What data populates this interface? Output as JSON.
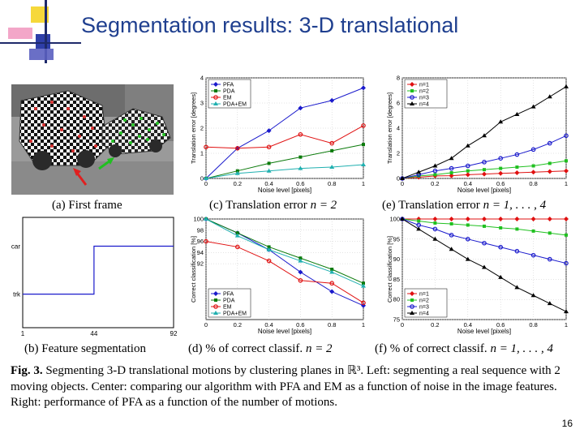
{
  "slide": {
    "title": "Segmentation results: 3-D translational",
    "page_number": "16"
  },
  "subcaptions": {
    "a": "(a) First frame",
    "b": "(b) Feature segmentation",
    "c_prefix": "(c) Translation error ",
    "c_math": "n = 2",
    "d_prefix": "(d) % of correct classif. ",
    "d_math": "n = 2",
    "e_prefix": "(e) Translation error ",
    "e_math": "n = 1, . . . , 4",
    "f_prefix": "(f) % of correct classif. ",
    "f_math": "n = 1, . . . , 4"
  },
  "figure_caption": {
    "label": "Fig. 3.",
    "text": " Segmenting 3-D translational motions by clustering planes in ℝ³. Left: segmenting a real sequence with 2 moving objects. Center: comparing our algorithm with PFA and EM as a function of noise in the image features. Right: performance of PFA as a function of the number of motions."
  },
  "colors": {
    "title": "#1f3f8f",
    "PFA": "#1a1acc",
    "PDA": "#0a7a0a",
    "EM": "#e01010",
    "PDA+EM": "#20b0b0",
    "n=1": "#e01010",
    "n=2": "#20c020",
    "n=3": "#1a1acc",
    "n=4": "#000000"
  },
  "chart_data": [
    {
      "id": "b",
      "type": "line",
      "x": [
        1,
        44,
        44,
        92
      ],
      "series": [
        {
          "values": [
            1,
            1,
            2,
            2
          ]
        }
      ],
      "ytick_labels": [
        "trk",
        "car"
      ],
      "xtick_labels": [
        "1",
        "44",
        "92"
      ],
      "xlim": [
        1,
        92
      ],
      "ylim": [
        0.3,
        2.6
      ]
    },
    {
      "id": "c",
      "type": "line",
      "x": [
        0,
        0.2,
        0.4,
        0.6,
        0.8,
        1
      ],
      "series": [
        {
          "name": "PFA",
          "values": [
            0,
            1.2,
            1.9,
            2.8,
            3.1,
            3.6
          ]
        },
        {
          "name": "PDA",
          "values": [
            0,
            0.3,
            0.6,
            0.85,
            1.1,
            1.35
          ]
        },
        {
          "name": "EM",
          "values": [
            1.25,
            1.2,
            1.25,
            1.75,
            1.4,
            2.1
          ]
        },
        {
          "name": "PDA+EM",
          "values": [
            0,
            0.2,
            0.3,
            0.4,
            0.45,
            0.55
          ]
        }
      ],
      "xlabel": "Noise level [pixels]",
      "ylabel": "Translation error [degrees]",
      "xlim": [
        0,
        1
      ],
      "ylim": [
        0,
        4
      ],
      "xticks": [
        "0",
        "0.2",
        "0.4",
        "0.6",
        "0.8",
        "1"
      ],
      "yticks": [
        "0",
        "1",
        "2",
        "3",
        "4"
      ],
      "legend": "top-left"
    },
    {
      "id": "e",
      "type": "line",
      "x": [
        0,
        0.1,
        0.2,
        0.3,
        0.4,
        0.5,
        0.6,
        0.7,
        0.8,
        0.9,
        1
      ],
      "series": [
        {
          "name": "n=1",
          "values": [
            0,
            0.1,
            0.2,
            0.22,
            0.3,
            0.35,
            0.4,
            0.45,
            0.5,
            0.55,
            0.6
          ]
        },
        {
          "name": "n=2",
          "values": [
            0,
            0.2,
            0.3,
            0.45,
            0.6,
            0.7,
            0.8,
            0.9,
            1.0,
            1.2,
            1.4
          ]
        },
        {
          "name": "n=3",
          "values": [
            0,
            0.3,
            0.6,
            0.8,
            1.0,
            1.3,
            1.6,
            1.9,
            2.3,
            2.8,
            3.4
          ]
        },
        {
          "name": "n=4",
          "values": [
            0,
            0.5,
            1.0,
            1.6,
            2.6,
            3.4,
            4.5,
            5.1,
            5.7,
            6.5,
            7.3
          ]
        }
      ],
      "ylabel": "Translation error [degrees]",
      "xlabel": "Noise level [pixels]",
      "xlim": [
        0,
        1
      ],
      "ylim": [
        0,
        8
      ],
      "xticks": [
        "0",
        "0.2",
        "0.4",
        "0.6",
        "0.8",
        "1"
      ],
      "yticks": [
        "0",
        "2",
        "4",
        "6",
        "8"
      ],
      "legend": "top-left"
    },
    {
      "id": "d",
      "type": "line",
      "x": [
        0,
        0.2,
        0.4,
        0.6,
        0.8,
        1
      ],
      "series": [
        {
          "name": "PFA",
          "values": [
            100,
            97.5,
            94.5,
            90.5,
            87,
            84.5
          ]
        },
        {
          "name": "PDA",
          "values": [
            100,
            97.5,
            95,
            93,
            91,
            88.5
          ]
        },
        {
          "name": "EM",
          "values": [
            96,
            95,
            92.5,
            89,
            88.5,
            85
          ]
        },
        {
          "name": "PDA+EM",
          "values": [
            100,
            97,
            94.5,
            92.5,
            90.5,
            88
          ]
        }
      ],
      "xlabel": "Noise level [pixels]",
      "ylabel": "Correct classification [%]",
      "xlim": [
        0,
        1
      ],
      "ylim": [
        82,
        100
      ],
      "xticks": [
        "0",
        "0.2",
        "0.4",
        "0.6",
        "0.8",
        "1"
      ],
      "yticks": [
        "92",
        "94",
        "96",
        "98",
        "100"
      ],
      "legend": "bottom-left"
    },
    {
      "id": "f",
      "type": "line",
      "x": [
        0,
        0.1,
        0.2,
        0.3,
        0.4,
        0.5,
        0.6,
        0.7,
        0.8,
        0.9,
        1
      ],
      "series": [
        {
          "name": "n=1",
          "values": [
            100,
            100,
            100,
            100,
            100,
            100,
            100,
            100,
            100,
            100,
            100
          ]
        },
        {
          "name": "n=2",
          "values": [
            100,
            99.5,
            99,
            98.8,
            98.5,
            98.2,
            97.8,
            97.5,
            97,
            96.5,
            96
          ]
        },
        {
          "name": "n=3",
          "values": [
            100,
            98.5,
            97.5,
            96,
            95,
            94,
            93,
            92,
            91,
            90,
            89
          ]
        },
        {
          "name": "n=4",
          "values": [
            100,
            97.5,
            95,
            92.5,
            90,
            88,
            85.5,
            83,
            81,
            79,
            77
          ]
        }
      ],
      "xlabel": "Noise level [pixels]",
      "ylabel": "Correct classification [%]",
      "xlim": [
        0,
        1
      ],
      "ylim": [
        75,
        100
      ],
      "xticks": [
        "0",
        "0.2",
        "0.4",
        "0.6",
        "0.8",
        "1"
      ],
      "yticks": [
        "75",
        "80",
        "85",
        "90",
        "95",
        "100"
      ],
      "legend": "bottom-left"
    }
  ]
}
